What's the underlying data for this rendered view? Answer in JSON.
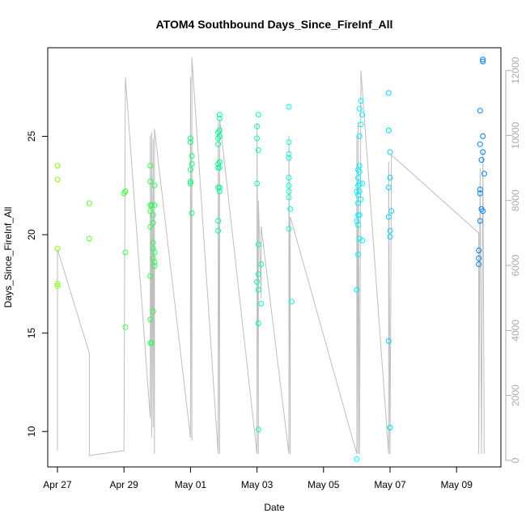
{
  "chart_data": {
    "type": "scatter",
    "title": "ATOM4 Southbound Days_Since_FireInf_All",
    "xlabel": "Date",
    "ylabel": "Days_Since_FireInf_All",
    "x_ticks": [
      "Apr 27",
      "Apr 29",
      "May 01",
      "May 03",
      "May 05",
      "May 07",
      "May 09"
    ],
    "y_ticks": [
      10,
      15,
      20,
      25
    ],
    "y2_ticks": [
      0,
      2000,
      4000,
      6000,
      8000,
      10000,
      12000
    ],
    "xlim": [
      "2016-04-26T17:00",
      "2016-05-10T08:00"
    ],
    "ylim": [
      8.2,
      29.5
    ],
    "y2lim": [
      -200,
      12700
    ],
    "point_colors": [
      "#80ff00",
      "#00ff80",
      "#00ffff",
      "#0080ff"
    ],
    "line_color": "#bebebe",
    "grid": false,
    "series": [
      {
        "values": [
          [
            "2016-04-27T00:00",
            23.5
          ],
          [
            "2016-04-27T00:00",
            22.8
          ],
          [
            "2016-04-27T00:00",
            19.3
          ],
          [
            "2016-04-27T00:00",
            17.5
          ],
          [
            "2016-04-27T00:00",
            17.4
          ],
          [
            "2016-04-27T23:00",
            21.6
          ],
          [
            "2016-04-27T23:00",
            19.8
          ],
          [
            "2016-04-29T00:00",
            22.1
          ],
          [
            "2016-04-29T01:00",
            22.2
          ],
          [
            "2016-04-29T01:00",
            22.2
          ],
          [
            "2016-04-29T01:00",
            19.1
          ],
          [
            "2016-04-29T01:00",
            15.3
          ],
          [
            "2016-04-29T19:00",
            23.5
          ],
          [
            "2016-04-29T19:00",
            22.7
          ],
          [
            "2016-04-29T19:00",
            21.5
          ],
          [
            "2016-04-29T19:00",
            21.2
          ],
          [
            "2016-04-29T19:00",
            20.4
          ],
          [
            "2016-04-29T19:00",
            17.9
          ],
          [
            "2016-04-29T19:00",
            15.7
          ],
          [
            "2016-04-29T19:00",
            14.5
          ],
          [
            "2016-04-29T20:00",
            14.5
          ],
          [
            "2016-04-29T20:00",
            21.5
          ],
          [
            "2016-04-29T21:00",
            21.0
          ],
          [
            "2016-04-29T21:00",
            20.6
          ],
          [
            "2016-04-29T21:00",
            19.6
          ],
          [
            "2016-04-29T21:00",
            19.3
          ],
          [
            "2016-04-29T21:00",
            18.8
          ],
          [
            "2016-04-29T21:00",
            16.1
          ],
          [
            "2016-04-29T22:00",
            22.5
          ],
          [
            "2016-04-29T22:00",
            21.5
          ],
          [
            "2016-04-29T22:00",
            19.1
          ],
          [
            "2016-04-29T22:00",
            18.6
          ],
          [
            "2016-04-29T22:00",
            18.4
          ],
          [
            "2016-05-01T00:00",
            24.9
          ],
          [
            "2016-05-01T00:00",
            24.7
          ],
          [
            "2016-05-01T00:00",
            23.3
          ],
          [
            "2016-05-01T00:00",
            22.7
          ],
          [
            "2016-05-01T00:00",
            22.6
          ],
          [
            "2016-05-01T01:00",
            24.0
          ],
          [
            "2016-05-01T01:00",
            23.6
          ],
          [
            "2016-05-01T01:00",
            21.1
          ],
          [
            "2016-05-01T20:00",
            25.2
          ],
          [
            "2016-05-01T20:00",
            24.9
          ],
          [
            "2016-05-01T20:00",
            24.6
          ],
          [
            "2016-05-01T20:00",
            23.6
          ],
          [
            "2016-05-01T20:00",
            23.4
          ],
          [
            "2016-05-01T20:00",
            22.4
          ],
          [
            "2016-05-01T20:00",
            20.7
          ],
          [
            "2016-05-01T20:00",
            20.2
          ],
          [
            "2016-05-01T21:00",
            26.1
          ],
          [
            "2016-05-01T21:00",
            25.9
          ],
          [
            "2016-05-01T21:00",
            25.3
          ],
          [
            "2016-05-01T21:00",
            25.0
          ],
          [
            "2016-05-01T21:00",
            23.7
          ],
          [
            "2016-05-01T21:00",
            23.4
          ],
          [
            "2016-05-01T21:00",
            22.4
          ],
          [
            "2016-05-01T21:00",
            22.2
          ],
          [
            "2016-05-03T00:00",
            25.5
          ],
          [
            "2016-05-03T00:00",
            24.9
          ],
          [
            "2016-05-03T00:00",
            22.6
          ],
          [
            "2016-05-03T00:00",
            17.6
          ],
          [
            "2016-05-03T01:00",
            26.1
          ],
          [
            "2016-05-03T01:00",
            24.3
          ],
          [
            "2016-05-03T01:00",
            19.5
          ],
          [
            "2016-05-03T01:00",
            18.0
          ],
          [
            "2016-05-03T01:00",
            17.2
          ],
          [
            "2016-05-03T01:00",
            15.5
          ],
          [
            "2016-05-03T01:00",
            10.1
          ],
          [
            "2016-05-03T03:00",
            18.5
          ],
          [
            "2016-05-03T03:00",
            16.5
          ],
          [
            "2016-05-03T23:00",
            26.5
          ],
          [
            "2016-05-03T23:00",
            24.7
          ],
          [
            "2016-05-03T23:00",
            24.1
          ],
          [
            "2016-05-03T23:00",
            23.9
          ],
          [
            "2016-05-03T23:00",
            22.9
          ],
          [
            "2016-05-03T23:00",
            22.5
          ],
          [
            "2016-05-03T23:00",
            22.2
          ],
          [
            "2016-05-03T23:00",
            21.9
          ],
          [
            "2016-05-03T23:00",
            20.3
          ],
          [
            "2016-05-04T00:00",
            21.3
          ],
          [
            "2016-05-04T01:00",
            16.6
          ],
          [
            "2016-05-06T00:00",
            17.2
          ],
          [
            "2016-05-06T00:00",
            8.6
          ],
          [
            "2016-05-06T00:00",
            22.2
          ],
          [
            "2016-05-06T00:00",
            20.7
          ],
          [
            "2016-05-06T01:00",
            23.3
          ],
          [
            "2016-05-06T01:00",
            22.9
          ],
          [
            "2016-05-06T01:00",
            22.5
          ],
          [
            "2016-05-06T01:00",
            22.0
          ],
          [
            "2016-05-06T01:00",
            21.6
          ],
          [
            "2016-05-06T01:00",
            21.0
          ],
          [
            "2016-05-06T01:00",
            20.5
          ],
          [
            "2016-05-06T01:00",
            19.0
          ],
          [
            "2016-05-06T02:00",
            26.4
          ],
          [
            "2016-05-06T02:00",
            25.0
          ],
          [
            "2016-05-06T02:00",
            23.5
          ],
          [
            "2016-05-06T02:00",
            23.2
          ],
          [
            "2016-05-06T02:00",
            22.6
          ],
          [
            "2016-05-06T02:00",
            22.2
          ],
          [
            "2016-05-06T02:00",
            21.0
          ],
          [
            "2016-05-06T02:00",
            19.8
          ],
          [
            "2016-05-06T03:00",
            26.8
          ],
          [
            "2016-05-06T03:00",
            25.6
          ],
          [
            "2016-05-06T03:00",
            21.8
          ],
          [
            "2016-05-06T04:00",
            26.1
          ],
          [
            "2016-05-06T04:00",
            22.6
          ],
          [
            "2016-05-06T04:00",
            19.7
          ],
          [
            "2016-05-06T23:00",
            27.2
          ],
          [
            "2016-05-06T23:00",
            25.3
          ],
          [
            "2016-05-06T23:00",
            22.4
          ],
          [
            "2016-05-06T23:00",
            20.9
          ],
          [
            "2016-05-06T23:00",
            14.6
          ],
          [
            "2016-05-07T00:00",
            24.2
          ],
          [
            "2016-05-07T00:00",
            22.9
          ],
          [
            "2016-05-07T00:00",
            20.2
          ],
          [
            "2016-05-07T00:00",
            19.9
          ],
          [
            "2016-05-07T00:00",
            10.2
          ],
          [
            "2016-05-07T01:00",
            21.2
          ],
          [
            "2016-05-09T16:00",
            19.2
          ],
          [
            "2016-05-09T16:00",
            18.8
          ],
          [
            "2016-05-09T16:00",
            18.5
          ],
          [
            "2016-05-09T17:00",
            26.3
          ],
          [
            "2016-05-09T17:00",
            24.6
          ],
          [
            "2016-05-09T17:00",
            22.3
          ],
          [
            "2016-05-09T17:00",
            22.1
          ],
          [
            "2016-05-09T17:00",
            20.7
          ],
          [
            "2016-05-09T18:00",
            23.8
          ],
          [
            "2016-05-09T18:00",
            21.3
          ],
          [
            "2016-05-09T19:00",
            28.9
          ],
          [
            "2016-05-09T19:00",
            28.8
          ],
          [
            "2016-05-09T19:00",
            25.0
          ],
          [
            "2016-05-09T19:00",
            24.2
          ],
          [
            "2016-05-09T19:00",
            21.2
          ],
          [
            "2016-05-09T20:00",
            23.1
          ]
        ]
      },
      {
        "type": "line",
        "axis": "right",
        "values": [
          [
            "2016-04-27T00:00",
            300
          ],
          [
            "2016-04-27T00:00",
            5300
          ],
          [
            "2016-04-27T00:00",
            6500
          ],
          [
            "2016-04-27T23:00",
            3300
          ],
          [
            "2016-04-27T23:00",
            150
          ],
          [
            "2016-04-29T00:00",
            300
          ],
          [
            "2016-04-29T01:00",
            11800
          ],
          [
            "2016-04-29T19:00",
            1300
          ],
          [
            "2016-04-29T19:00",
            10000
          ],
          [
            "2016-04-29T20:00",
            700
          ],
          [
            "2016-04-29T20:00",
            10100
          ],
          [
            "2016-04-29T21:00",
            1000
          ],
          [
            "2016-04-29T21:00",
            9900
          ],
          [
            "2016-04-29T22:00",
            200
          ],
          [
            "2016-04-29T22:00",
            10200
          ],
          [
            "2016-05-01T00:00",
            700
          ],
          [
            "2016-05-01T00:00",
            11800
          ],
          [
            "2016-05-01T01:00",
            600
          ],
          [
            "2016-05-01T01:00",
            12400
          ],
          [
            "2016-05-01T20:00",
            200
          ],
          [
            "2016-05-01T20:00",
            10400
          ],
          [
            "2016-05-01T21:00",
            200
          ],
          [
            "2016-05-01T21:00",
            10500
          ],
          [
            "2016-05-03T00:00",
            200
          ],
          [
            "2016-05-03T00:00",
            10400
          ],
          [
            "2016-05-03T01:00",
            200
          ],
          [
            "2016-05-03T01:00",
            8000
          ],
          [
            "2016-05-03T03:00",
            5000
          ],
          [
            "2016-05-03T03:00",
            7200
          ],
          [
            "2016-05-03T23:00",
            200
          ],
          [
            "2016-05-03T23:00",
            10000
          ],
          [
            "2016-05-04T00:00",
            200
          ],
          [
            "2016-05-04T00:00",
            7500
          ],
          [
            "2016-05-06T00:00",
            200
          ],
          [
            "2016-05-06T00:00",
            10000
          ],
          [
            "2016-05-06T01:00",
            200
          ],
          [
            "2016-05-06T01:00",
            10400
          ],
          [
            "2016-05-06T02:00",
            200
          ],
          [
            "2016-05-06T03:00",
            12000
          ],
          [
            "2016-05-06T23:00",
            200
          ],
          [
            "2016-05-06T23:00",
            9200
          ],
          [
            "2016-05-07T00:00",
            200
          ],
          [
            "2016-05-07T01:00",
            9400
          ],
          [
            "2016-05-09T16:00",
            7000
          ],
          [
            "2016-05-09T16:00",
            200
          ],
          [
            "2016-05-09T17:00",
            9000
          ],
          [
            "2016-05-09T18:00",
            200
          ],
          [
            "2016-05-09T19:00",
            9500
          ],
          [
            "2016-05-09T20:00",
            200
          ]
        ]
      }
    ]
  }
}
